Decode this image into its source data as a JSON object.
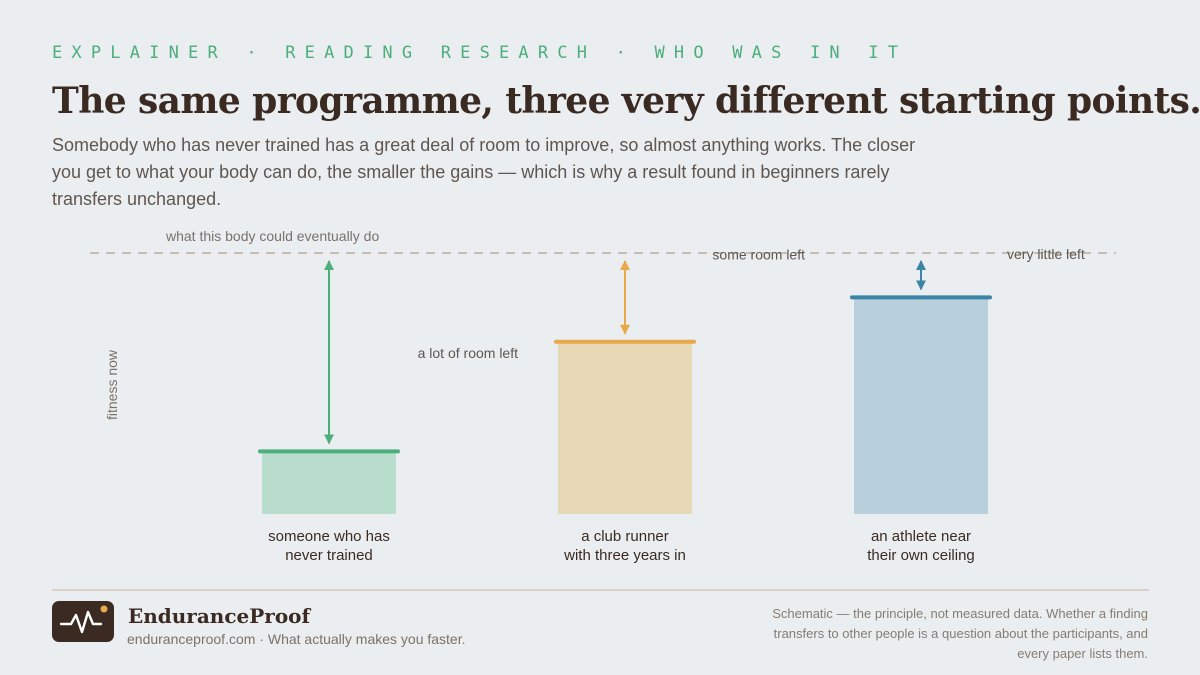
{
  "header": {
    "eyebrow": "EXPLAINER · READING RESEARCH · WHO WAS IN IT",
    "title": "The same programme, three very different starting points.",
    "subtitle": "Somebody who has never trained has a great deal of room to improve, so almost anything works. The closer you get to what your body can do, the smaller the gains — which is why a result found in beginners rarely transfers unchanged."
  },
  "chart_data": {
    "type": "bar",
    "ylabel": "fitness now",
    "ceiling_label": "what this body could eventually do",
    "ceiling": 100,
    "ylim": [
      0,
      100
    ],
    "grid": false,
    "categories": [
      "someone who has never trained",
      "a club runner with three years in",
      "an athlete near their own ceiling"
    ],
    "categories_display": [
      [
        "someone who has",
        "never trained"
      ],
      [
        "a club runner",
        "with three years in"
      ],
      [
        "an athlete near",
        "their own ceiling"
      ]
    ],
    "values": [
      24,
      66,
      83
    ],
    "gap_labels": [
      "a lot of room left",
      "some room left",
      "very little left"
    ],
    "colors": {
      "fill": [
        "#b8ddcc",
        "#e8d9b6",
        "#b8cfdc"
      ],
      "accent": [
        "#4cae7b",
        "#e9a94a",
        "#3b84a5"
      ],
      "ceiling_line": "#c6beb0"
    }
  },
  "footer": {
    "brand": "EnduranceProof",
    "tagline": "enduranceproof.com · What actually makes you faster.",
    "note": "Schematic — the principle, not measured data. Whether a finding transfers to other people is a question about the participants, and every paper lists them."
  },
  "colors": {
    "background": "#ebeef0",
    "eyebrow": "#4cae7b",
    "title": "#3a2a22",
    "body_text": "#5f5650",
    "logo_bg": "#3a2a22",
    "logo_dot": "#e9a94a"
  }
}
